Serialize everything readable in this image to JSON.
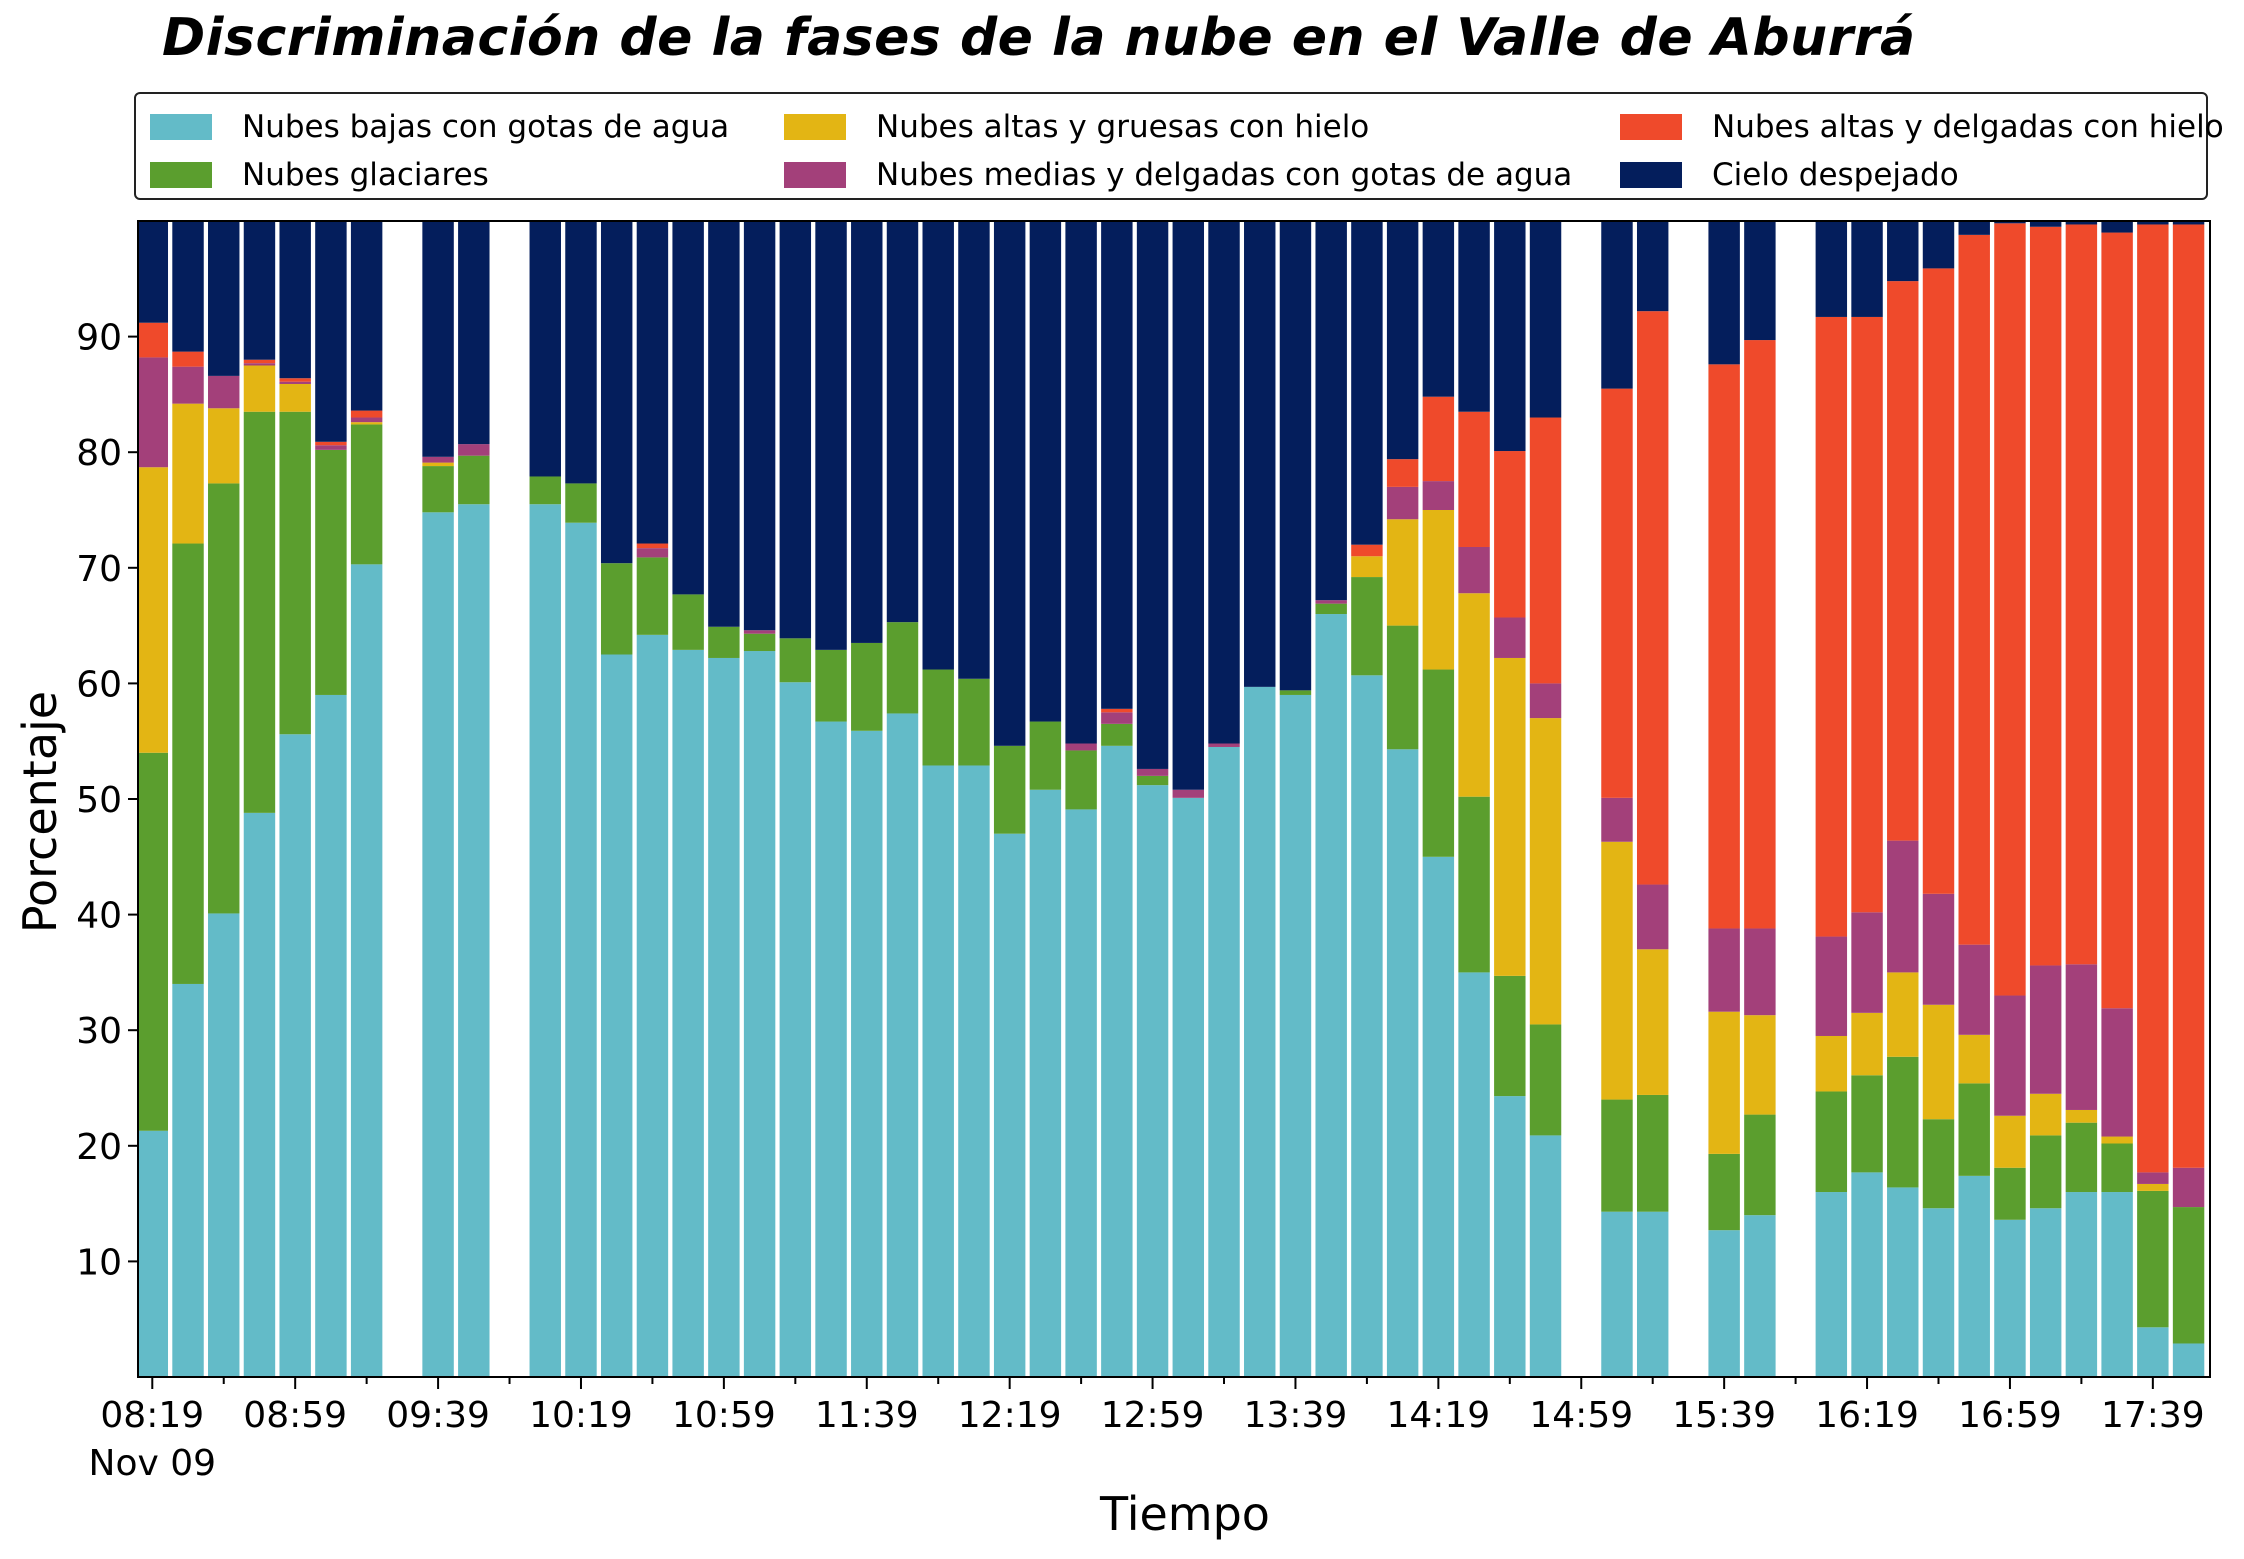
{
  "chart_data": {
    "type": "bar",
    "stacked": true,
    "title": "Discriminación de la fases de la nube en el Valle de Aburrá",
    "xlabel": "Tiempo",
    "ylabel": "Porcentaje",
    "ylim": [
      0,
      100
    ],
    "yticks": [
      10,
      20,
      30,
      40,
      50,
      60,
      70,
      80,
      90
    ],
    "xtick_labels": [
      {
        "t": 0,
        "label": "08:19",
        "sublabel": "Nov 09"
      },
      {
        "t": 40,
        "label": "08:59"
      },
      {
        "t": 80,
        "label": "09:39"
      },
      {
        "t": 120,
        "label": "10:19"
      },
      {
        "t": 160,
        "label": "10:59"
      },
      {
        "t": 200,
        "label": "11:39"
      },
      {
        "t": 240,
        "label": "12:19"
      },
      {
        "t": 280,
        "label": "12:59"
      },
      {
        "t": 320,
        "label": "13:39"
      },
      {
        "t": 360,
        "label": "14:19"
      },
      {
        "t": 400,
        "label": "14:59"
      },
      {
        "t": 440,
        "label": "15:39"
      },
      {
        "t": 480,
        "label": "16:19"
      },
      {
        "t": 520,
        "label": "16:59"
      },
      {
        "t": 560,
        "label": "17:39"
      }
    ],
    "x_minutes_from_0819": [
      0,
      10,
      20,
      30,
      40,
      50,
      60,
      80,
      90,
      110,
      120,
      130,
      140,
      150,
      160,
      170,
      180,
      190,
      200,
      210,
      220,
      230,
      240,
      250,
      260,
      270,
      280,
      290,
      300,
      310,
      320,
      330,
      340,
      350,
      360,
      370,
      380,
      390,
      410,
      420,
      440,
      450,
      470,
      480,
      490,
      500,
      510,
      520,
      530,
      540,
      550,
      560,
      570
    ],
    "legend_position": "top",
    "grid": false,
    "series": [
      {
        "name": "Nubes bajas con gotas de agua",
        "color": "#63BBC8",
        "values": [
          21.3,
          34.0,
          40.1,
          48.8,
          55.6,
          59.0,
          70.3,
          74.8,
          75.5,
          75.5,
          73.9,
          62.5,
          64.2,
          62.9,
          62.2,
          62.8,
          60.1,
          56.7,
          55.9,
          57.4,
          52.9,
          52.9,
          47.0,
          50.8,
          49.1,
          54.6,
          51.2,
          50.1,
          54.5,
          59.7,
          59.0,
          66.0,
          60.7,
          54.3,
          45.0,
          35.0,
          24.3,
          20.9,
          14.3,
          14.3,
          12.7,
          14.0,
          16.0,
          17.7,
          16.4,
          14.6,
          17.4,
          13.6,
          14.6,
          16.0,
          16.0,
          4.3,
          2.9
        ]
      },
      {
        "name": "Nubes glaciares",
        "color": "#5B9E2E",
        "values": [
          32.7,
          38.1,
          37.2,
          34.7,
          27.9,
          21.2,
          12.1,
          4.0,
          4.2,
          2.4,
          3.4,
          7.9,
          6.7,
          4.8,
          2.7,
          1.5,
          3.8,
          6.2,
          7.6,
          7.9,
          8.3,
          7.5,
          7.6,
          5.9,
          5.1,
          1.9,
          0.8,
          0,
          0,
          0,
          0.4,
          0.9,
          8.5,
          10.7,
          16.2,
          15.2,
          10.4,
          9.6,
          9.7,
          10.1,
          6.6,
          8.7,
          8.7,
          8.4,
          11.3,
          7.7,
          8.0,
          4.5,
          6.3,
          6.0,
          4.2,
          11.8,
          11.8
        ]
      },
      {
        "name": "Nubes altas y gruesas con hielo",
        "color": "#E3B514",
        "values": [
          24.7,
          12.1,
          6.5,
          4.0,
          2.4,
          0,
          0.2,
          0.3,
          0,
          0,
          0,
          0,
          0,
          0,
          0,
          0,
          0,
          0,
          0,
          0,
          0,
          0,
          0,
          0,
          0,
          0,
          0,
          0,
          0,
          0,
          0,
          0,
          1.8,
          9.2,
          13.8,
          17.6,
          27.5,
          26.5,
          22.3,
          12.6,
          12.3,
          8.6,
          4.8,
          5.4,
          7.3,
          9.9,
          4.2,
          4.5,
          3.6,
          1.1,
          0.6,
          0.6,
          0
        ]
      },
      {
        "name": "Nubes medias y delgadas con gotas de agua",
        "color": "#A3407A",
        "values": [
          9.5,
          3.2,
          2.8,
          0.2,
          0.2,
          0.4,
          0.4,
          0.5,
          1.0,
          0,
          0,
          0,
          0.8,
          0,
          0,
          0.3,
          0,
          0,
          0,
          0,
          0,
          0,
          0,
          0,
          0.6,
          1.0,
          0.6,
          0.7,
          0.3,
          0,
          0,
          0.3,
          0,
          2.8,
          2.5,
          4.0,
          3.5,
          3.0,
          3.8,
          5.6,
          7.2,
          7.5,
          8.6,
          8.7,
          11.4,
          9.6,
          7.8,
          10.4,
          11.1,
          12.6,
          11.1,
          1.0,
          3.4
        ]
      },
      {
        "name": "Nubes altas y delgadas con hielo",
        "color": "#EF4A2B",
        "values": [
          3.0,
          1.3,
          0,
          0.3,
          0.3,
          0.3,
          0.6,
          0,
          0,
          0,
          0,
          0,
          0.4,
          0,
          0,
          0,
          0,
          0,
          0,
          0,
          0,
          0,
          0,
          0,
          0,
          0.3,
          0,
          0,
          0,
          0,
          0,
          0,
          1.0,
          2.4,
          7.3,
          11.7,
          14.4,
          23.0,
          35.4,
          49.6,
          48.8,
          50.9,
          53.6,
          51.5,
          48.4,
          54.1,
          61.4,
          66.8,
          63.9,
          64.0,
          67.1,
          82.0,
          81.6
        ]
      },
      {
        "name": "Cielo despejado",
        "color": "#041E5C",
        "values": [
          8.8,
          11.3,
          13.4,
          12.0,
          13.6,
          19.1,
          16.4,
          20.4,
          19.3,
          22.1,
          22.7,
          29.6,
          27.9,
          32.3,
          35.1,
          35.4,
          36.1,
          37.1,
          36.5,
          34.7,
          38.8,
          39.6,
          45.4,
          43.3,
          45.2,
          42.2,
          47.4,
          49.2,
          45.2,
          40.3,
          40.6,
          32.8,
          28.0,
          20.6,
          15.2,
          16.5,
          19.9,
          17.0,
          14.5,
          7.8,
          12.4,
          10.3,
          8.3,
          8.3,
          5.2,
          4.1,
          1.2,
          0.2,
          0.5,
          0.3,
          1.0,
          0.3,
          0.3
        ]
      }
    ]
  }
}
